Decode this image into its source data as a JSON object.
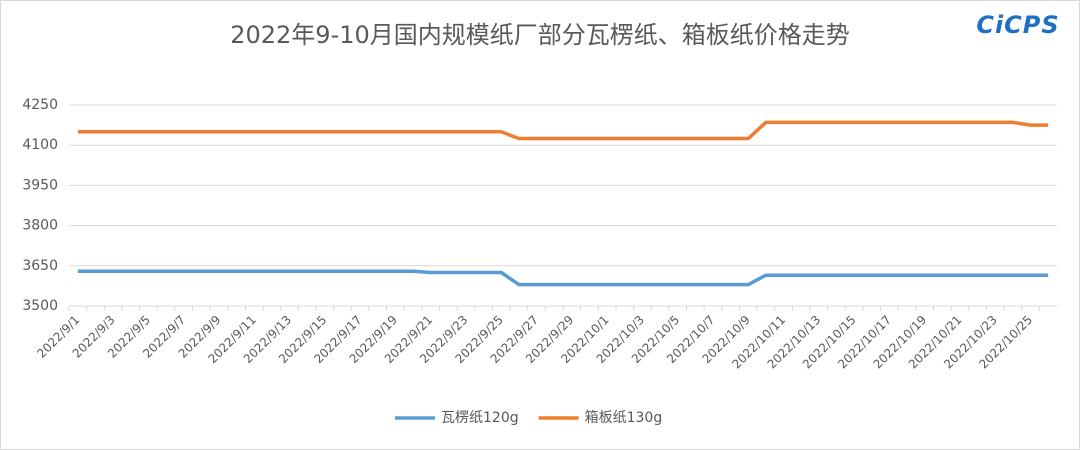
{
  "chart_data": {
    "type": "line",
    "title": "2022年9-10月国内规模纸厂部分瓦楞纸、箱板纸价格走势",
    "logo": "CiCPS",
    "categories": [
      "2022/9/1",
      null,
      "2022/9/3",
      null,
      "2022/9/5",
      null,
      "2022/9/7",
      null,
      "2022/9/9",
      null,
      "2022/9/11",
      null,
      "2022/9/13",
      null,
      "2022/9/15",
      null,
      "2022/9/17",
      null,
      "2022/9/19",
      null,
      "2022/9/21",
      null,
      "2022/9/23",
      null,
      "2022/9/25",
      null,
      "2022/9/27",
      null,
      "2022/9/29",
      null,
      "2022/10/1",
      null,
      "2022/10/3",
      null,
      "2022/10/5",
      null,
      "2022/10/7",
      null,
      "2022/10/9",
      null,
      "2022/10/11",
      null,
      "2022/10/13",
      null,
      "2022/10/15",
      null,
      "2022/10/17",
      null,
      "2022/10/19",
      null,
      "2022/10/21",
      null,
      "2022/10/23",
      null,
      "2022/10/25",
      null
    ],
    "series": [
      {
        "name": "瓦楞纸120g",
        "color": "#5b9bd5",
        "values": [
          3630,
          3630,
          3630,
          3630,
          3630,
          3630,
          3630,
          3630,
          3630,
          3630,
          3630,
          3630,
          3630,
          3630,
          3630,
          3630,
          3630,
          3630,
          3630,
          3630,
          3625,
          3625,
          3625,
          3625,
          3625,
          3580,
          3580,
          3580,
          3580,
          3580,
          3580,
          3580,
          3580,
          3580,
          3580,
          3580,
          3580,
          3580,
          3580,
          3615,
          3615,
          3615,
          3615,
          3615,
          3615,
          3615,
          3615,
          3615,
          3615,
          3615,
          3615,
          3615,
          3615,
          3615,
          3615,
          3615
        ]
      },
      {
        "name": "箱板纸130g",
        "color": "#ed7d31",
        "values": [
          4150,
          4150,
          4150,
          4150,
          4150,
          4150,
          4150,
          4150,
          4150,
          4150,
          4150,
          4150,
          4150,
          4150,
          4150,
          4150,
          4150,
          4150,
          4150,
          4150,
          4150,
          4150,
          4150,
          4150,
          4150,
          4125,
          4125,
          4125,
          4125,
          4125,
          4125,
          4125,
          4125,
          4125,
          4125,
          4125,
          4125,
          4125,
          4125,
          4185,
          4185,
          4185,
          4185,
          4185,
          4185,
          4185,
          4185,
          4185,
          4185,
          4185,
          4185,
          4185,
          4185,
          4185,
          4175,
          4175
        ]
      }
    ],
    "ylim": [
      3500,
      4250
    ],
    "yticks": [
      3500,
      3650,
      3800,
      3950,
      4100,
      4250
    ],
    "grid": true,
    "legend": "bottom"
  }
}
